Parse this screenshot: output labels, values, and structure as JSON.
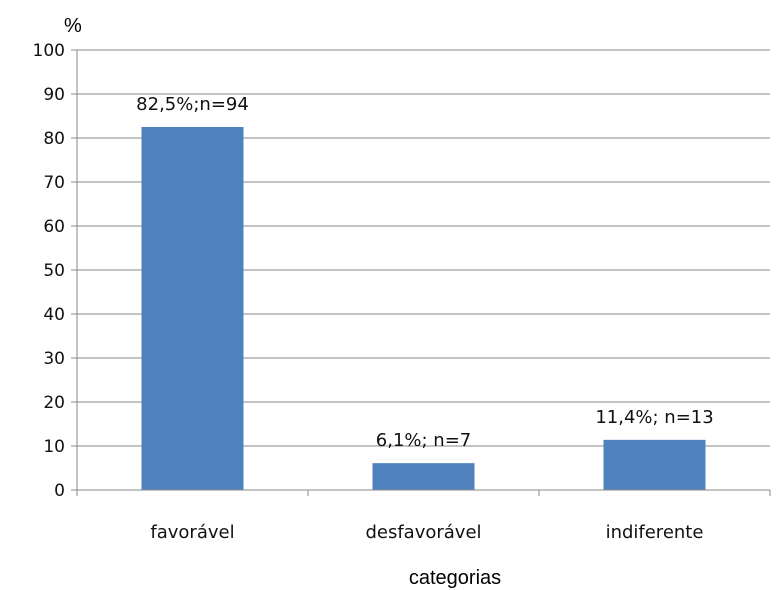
{
  "chart_data": {
    "type": "bar",
    "categories": [
      "favorável",
      "desfavorável",
      "indiferente"
    ],
    "values": [
      82.5,
      6.1,
      11.4
    ],
    "data_labels": [
      "82,5%;n=94",
      "6,1%; n=7",
      "11,4%; n=13"
    ],
    "ylabel": "%",
    "xlabel": "categorias",
    "ylim": [
      0,
      100
    ],
    "yticks": [
      0,
      10,
      20,
      30,
      40,
      50,
      60,
      70,
      80,
      90,
      100
    ],
    "grid": true,
    "legend": "none",
    "bar_color": "#4f81bd"
  }
}
